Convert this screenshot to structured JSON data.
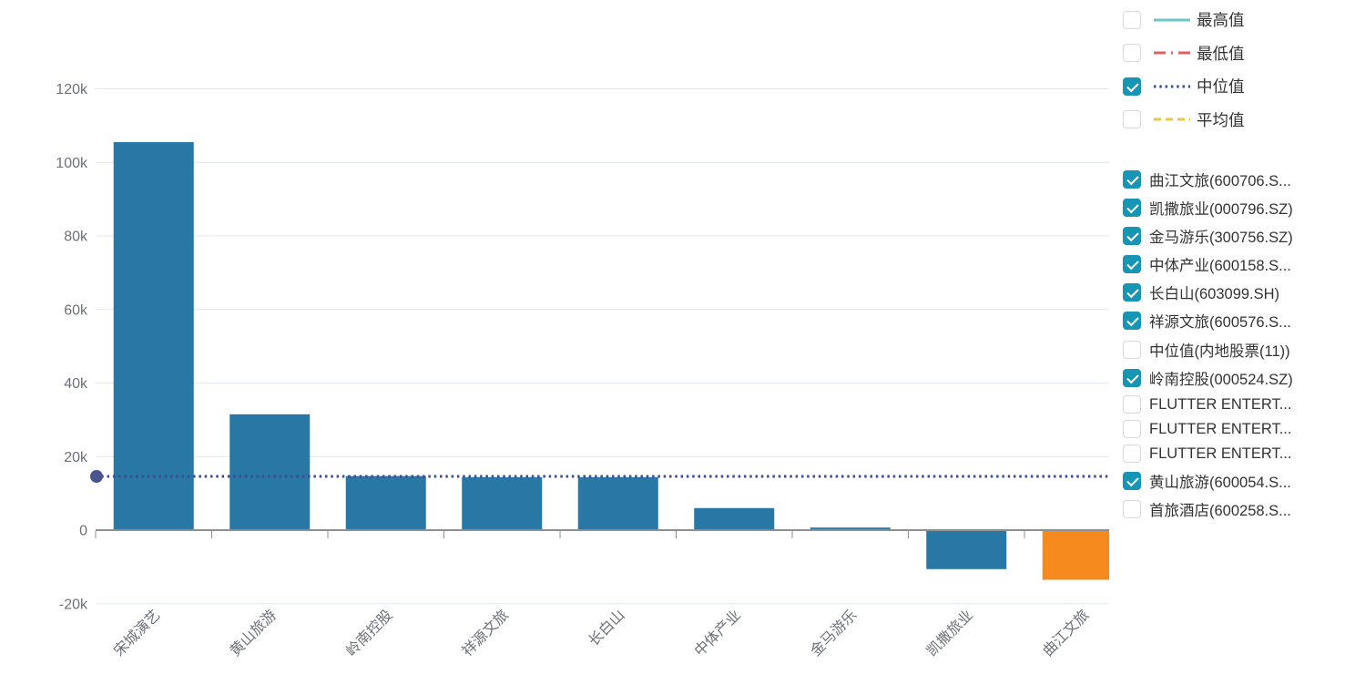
{
  "colors": {
    "axis_line": "#8f8f8f",
    "grid_line": "#e2e7f2",
    "axis_text": "#6d7078",
    "legend_text": "#333333",
    "checkbox_checked": "#1696b4",
    "checkbox_border": "#d9d9d9",
    "bar_blue": "#2977a4",
    "bar_orange": "#f68a1e",
    "median_navy": "#3b4c94"
  },
  "legend_stats": {
    "items": [
      {
        "label": "最高值",
        "checked": false,
        "line_color": "#6cc7c3",
        "dash": "solid"
      },
      {
        "label": "最低值",
        "checked": false,
        "line_color": "#e05f5f",
        "dash": "dashdot"
      },
      {
        "label": "中位值",
        "checked": true,
        "line_color": "#3b4c94",
        "dash": "dotted"
      },
      {
        "label": "平均值",
        "checked": false,
        "line_color": "#e9c847",
        "dash": "dashed"
      }
    ]
  },
  "legend_series": {
    "items": [
      {
        "label": "曲江文旅(600706.S...",
        "checked": true
      },
      {
        "label": "凯撒旅业(000796.SZ)",
        "checked": true
      },
      {
        "label": "金马游乐(300756.SZ)",
        "checked": true
      },
      {
        "label": "中体产业(600158.S...",
        "checked": true
      },
      {
        "label": "长白山(603099.SH)",
        "checked": true
      },
      {
        "label": "祥源文旅(600576.S...",
        "checked": true
      },
      {
        "label": "中位值(内地股票(11))",
        "checked": false
      },
      {
        "label": "岭南控股(000524.SZ)",
        "checked": true
      },
      {
        "label": "FLUTTER ENTERT...",
        "checked": false
      },
      {
        "label": "FLUTTER ENTERT...",
        "checked": false
      },
      {
        "label": "FLUTTER ENTERT...",
        "checked": false
      },
      {
        "label": "黄山旅游(600054.S...",
        "checked": true
      },
      {
        "label": "首旅酒店(600258.S...",
        "checked": false
      }
    ]
  },
  "chart_data": {
    "type": "bar",
    "title": "",
    "xlabel": "",
    "ylabel": "",
    "categories": [
      "宋城演艺",
      "黄山旅游",
      "岭南控股",
      "祥源文旅",
      "长白山",
      "中体产业",
      "金马游乐",
      "凯撒旅业",
      "曲江文旅"
    ],
    "values": [
      105500,
      31500,
      14700,
      14400,
      14400,
      6000,
      700,
      -10600,
      -13500
    ],
    "bar_colors": [
      "#2977a4",
      "#2977a4",
      "#2977a4",
      "#2977a4",
      "#2977a4",
      "#2977a4",
      "#2977a4",
      "#2977a4",
      "#f68a1e"
    ],
    "median_line": {
      "label": "中位值",
      "value": 14600,
      "color": "#3b4c94",
      "dot_color": "#4a5490",
      "style": "dotted"
    },
    "ylim": [
      -20000,
      123000
    ],
    "yticks": [
      {
        "value": 120000,
        "label": "120k"
      },
      {
        "value": 100000,
        "label": "100k"
      },
      {
        "value": 80000,
        "label": "80k"
      },
      {
        "value": 60000,
        "label": "60k"
      },
      {
        "value": 40000,
        "label": "40k"
      },
      {
        "value": 20000,
        "label": "20k"
      },
      {
        "value": 0,
        "label": "0"
      },
      {
        "value": -20000,
        "label": "-20k"
      }
    ],
    "grid": true,
    "legend_position": "right",
    "x_label_rotation": 45
  }
}
